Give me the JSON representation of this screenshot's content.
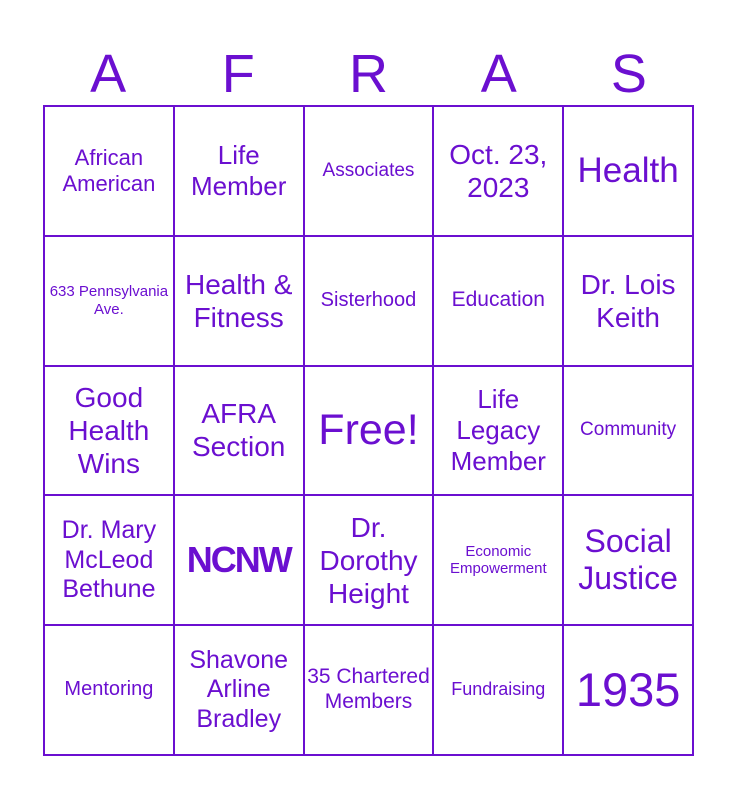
{
  "accent_color": "#6b0fd0",
  "header": [
    "A",
    "F",
    "R",
    "A",
    "S"
  ],
  "cells": [
    "African American",
    "Life Member",
    "Associates",
    "Oct. 23, 2023",
    "Health",
    "633 Pennsylvania Ave.",
    "Health & Fitness",
    "Sisterhood",
    "Education",
    "Dr. Lois Keith",
    "Good Health Wins",
    "AFRA Section",
    "Free!",
    "Life Legacy Member",
    "Community",
    "Dr. Mary McLeod Bethune",
    "NCNW",
    "Dr. Dorothy Height",
    "Economic Empowerment",
    "Social Justice",
    "Mentoring",
    "Shavone Arline Bradley",
    "35 Chartered Members",
    "Fundraising",
    "1935"
  ],
  "logo_cell_index": 16
}
